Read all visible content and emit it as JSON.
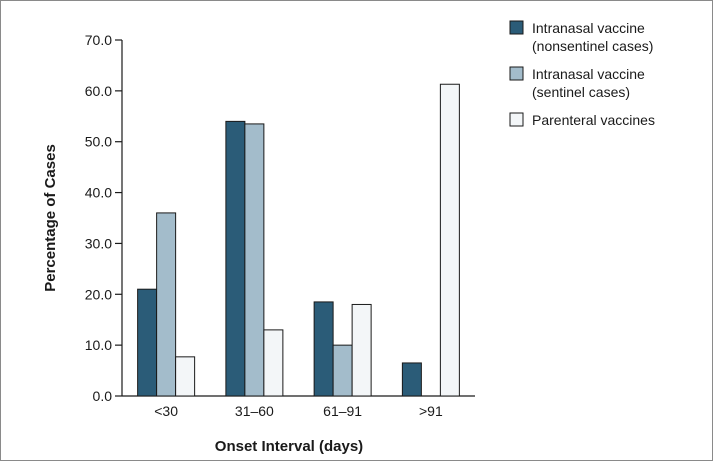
{
  "chart_data": {
    "type": "bar",
    "xlabel": "Onset Interval (days)",
    "ylabel": "Percentage of Cases",
    "ylim": [
      0,
      70
    ],
    "yticks": [
      "0.0",
      "10.0",
      "20.0",
      "30.0",
      "40.0",
      "50.0",
      "60.0",
      "70.0"
    ],
    "categories": [
      "<30",
      "31–60",
      "61–91",
      ">91"
    ],
    "series": [
      {
        "name": "Intranasal vaccine (nonsentinel cases)",
        "legend_lines": [
          "Intranasal vaccine",
          "(nonsentinel cases)"
        ],
        "color": "#2b5c78",
        "values": [
          21.0,
          54.0,
          18.5,
          6.5
        ]
      },
      {
        "name": "Intranasal vaccine (sentinel cases)",
        "legend_lines": [
          "Intranasal vaccine",
          "(sentinel cases)"
        ],
        "color": "#a3bccb",
        "values": [
          36.0,
          53.5,
          10.0,
          0
        ]
      },
      {
        "name": "Parenteral vaccines",
        "legend_lines": [
          "Parenteral vaccines"
        ],
        "color": "#f3f6f8",
        "values": [
          7.7,
          13.0,
          18.0,
          61.3
        ]
      }
    ],
    "legend_position": "top-right",
    "grid": false
  }
}
